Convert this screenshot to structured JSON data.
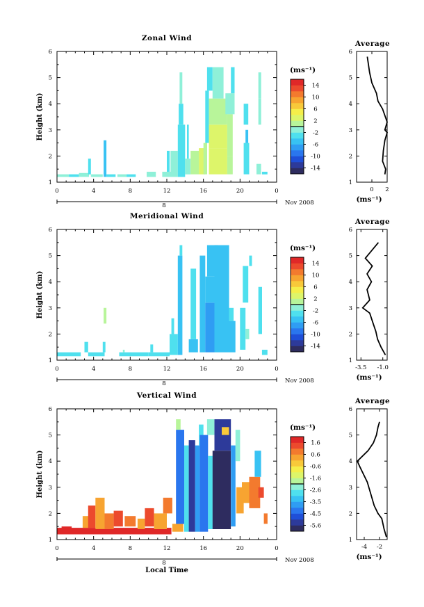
{
  "figure": {
    "date_label": "Nov 2008",
    "day_label": "8",
    "xlabel": "Local Time",
    "ylabel": "Height (km)",
    "average_title": "Average",
    "unit_label": "(ms⁻¹)"
  },
  "chart_data": [
    {
      "type": "heatmap",
      "title": "Zonal Wind",
      "xlabel": "Local Time",
      "ylabel": "Height (km)",
      "xlim": [
        0,
        24
      ],
      "xticks": [
        "0",
        "4",
        "8",
        "12",
        "16",
        "20",
        "0"
      ],
      "ylim": [
        1,
        6
      ],
      "yticks": [
        "1",
        "2",
        "3",
        "4",
        "5",
        "6"
      ],
      "colorbar": {
        "label": "(ms⁻¹)",
        "ticks": [
          "14",
          "10",
          "6",
          "2",
          "-2",
          "-6",
          "-10",
          "-14"
        ],
        "range": [
          -16,
          16
        ]
      },
      "cells": [
        [
          0,
          1.2,
          1.3,
          1.3,
          -2
        ],
        [
          1.3,
          1.2,
          2.4,
          1.3,
          -3
        ],
        [
          2.4,
          1.2,
          3.5,
          1.35,
          -2
        ],
        [
          3.4,
          1.3,
          3.7,
          1.9,
          -3
        ],
        [
          3.7,
          1.2,
          5.0,
          1.3,
          -2
        ],
        [
          5.1,
          1.2,
          5.4,
          2.6,
          -6
        ],
        [
          5.4,
          1.2,
          6.4,
          1.3,
          -3
        ],
        [
          6.6,
          1.2,
          7.6,
          1.3,
          -2
        ],
        [
          7.6,
          1.2,
          8.6,
          1.3,
          -3
        ],
        [
          9.8,
          1.2,
          10.8,
          1.4,
          -2
        ],
        [
          11.5,
          1.2,
          12.5,
          1.4,
          -1
        ],
        [
          12.0,
          1.4,
          12.3,
          2.2,
          -3
        ],
        [
          12.4,
          1.2,
          13.2,
          2.2,
          -2
        ],
        [
          13.2,
          1.2,
          14.0,
          3.2,
          -3
        ],
        [
          13.3,
          3.2,
          13.8,
          4.0,
          -4
        ],
        [
          13.4,
          4.0,
          13.7,
          5.2,
          -2
        ],
        [
          14.0,
          1.3,
          14.6,
          1.9,
          -1
        ],
        [
          14.2,
          1.9,
          14.4,
          3.2,
          -3
        ],
        [
          14.6,
          1.3,
          15.5,
          2.2,
          0
        ],
        [
          15.5,
          1.3,
          16.2,
          2.3,
          3
        ],
        [
          16.0,
          1.3,
          16.4,
          2.5,
          1
        ],
        [
          16.2,
          2.5,
          16.6,
          4.5,
          -3
        ],
        [
          16.4,
          4.5,
          17.0,
          5.4,
          -4
        ],
        [
          16.6,
          1.3,
          18.6,
          2.3,
          2
        ],
        [
          16.6,
          2.3,
          18.6,
          3.2,
          3
        ],
        [
          16.6,
          3.2,
          18.6,
          4.2,
          1
        ],
        [
          17.0,
          4.2,
          18.2,
          5.4,
          -2
        ],
        [
          18.6,
          1.3,
          19.2,
          2.0,
          0
        ],
        [
          18.6,
          2.0,
          19.2,
          3.6,
          0
        ],
        [
          18.4,
          3.6,
          19.4,
          4.4,
          -1
        ],
        [
          19.0,
          4.4,
          19.4,
          5.4,
          -3
        ],
        [
          20.4,
          1.3,
          21.0,
          2.5,
          -4
        ],
        [
          20.6,
          2.5,
          20.9,
          3.0,
          -5
        ],
        [
          20.4,
          3.2,
          20.9,
          4.0,
          -3
        ],
        [
          21.8,
          1.3,
          22.3,
          1.7,
          -2
        ],
        [
          22.0,
          3.2,
          22.3,
          4.2,
          -1
        ],
        [
          22.0,
          4.2,
          22.3,
          5.2,
          -2
        ],
        [
          22.4,
          1.3,
          23.0,
          1.4,
          -3
        ]
      ],
      "average_profile": {
        "xlim": [
          -2,
          2
        ],
        "xticks": [
          "0",
          "2"
        ],
        "ylim": [
          1,
          6
        ],
        "points": [
          [
            1.7,
            1.3
          ],
          [
            1.8,
            1.5
          ],
          [
            1.4,
            1.8
          ],
          [
            1.5,
            2.2
          ],
          [
            1.7,
            2.6
          ],
          [
            2.0,
            2.9
          ],
          [
            1.7,
            3.0
          ],
          [
            2.0,
            3.3
          ],
          [
            1.4,
            3.8
          ],
          [
            0.8,
            4.1
          ],
          [
            0.6,
            4.4
          ],
          [
            0.0,
            4.8
          ],
          [
            -0.3,
            5.2
          ],
          [
            -0.5,
            5.6
          ],
          [
            -0.6,
            5.8
          ]
        ]
      }
    },
    {
      "type": "heatmap",
      "title": "Meridional Wind",
      "xlabel": "Local Time",
      "ylabel": "Height (km)",
      "xlim": [
        0,
        24
      ],
      "xticks": [
        "0",
        "4",
        "8",
        "12",
        "16",
        "20",
        "0"
      ],
      "ylim": [
        1,
        6
      ],
      "yticks": [
        "1",
        "2",
        "3",
        "4",
        "5",
        "6"
      ],
      "colorbar": {
        "label": "(ms⁻¹)",
        "ticks": [
          "14",
          "10",
          "6",
          "2",
          "-2",
          "-6",
          "-10",
          "-14"
        ],
        "range": [
          -16,
          16
        ]
      },
      "cells": [
        [
          0,
          1.15,
          2.6,
          1.3,
          -4
        ],
        [
          3.4,
          1.15,
          5.2,
          1.3,
          -4
        ],
        [
          3.0,
          1.3,
          3.4,
          1.7,
          -3
        ],
        [
          5.0,
          1.3,
          5.3,
          1.7,
          -3
        ],
        [
          5.1,
          2.4,
          5.4,
          3.0,
          0
        ],
        [
          6.8,
          1.15,
          10.0,
          1.3,
          -3
        ],
        [
          7.2,
          1.3,
          7.4,
          1.4,
          -2
        ],
        [
          10.0,
          1.15,
          12.3,
          1.3,
          -4
        ],
        [
          10.2,
          1.3,
          10.5,
          1.6,
          -3
        ],
        [
          12.3,
          1.2,
          13.2,
          2.0,
          -3
        ],
        [
          12.5,
          2.0,
          12.8,
          2.6,
          -4
        ],
        [
          13.2,
          1.2,
          13.7,
          5.0,
          -5
        ],
        [
          13.4,
          5.0,
          13.7,
          5.4,
          -4
        ],
        [
          14.4,
          1.3,
          15.4,
          1.8,
          -5
        ],
        [
          14.6,
          1.8,
          15.2,
          4.5,
          -4
        ],
        [
          15.6,
          1.3,
          16.2,
          5.0,
          -5
        ],
        [
          16.2,
          1.3,
          17.2,
          3.2,
          -7
        ],
        [
          16.2,
          3.2,
          17.2,
          4.2,
          -6
        ],
        [
          16.4,
          4.2,
          17.6,
          5.4,
          -5
        ],
        [
          17.2,
          1.3,
          18.8,
          3.5,
          -6
        ],
        [
          17.2,
          3.5,
          18.8,
          5.4,
          -5
        ],
        [
          18.8,
          1.3,
          19.5,
          2.5,
          -5
        ],
        [
          18.8,
          2.5,
          19.3,
          3.0,
          -4
        ],
        [
          20.0,
          1.4,
          20.6,
          3.0,
          -4
        ],
        [
          20.6,
          1.8,
          21.0,
          2.2,
          -2
        ],
        [
          20.3,
          3.2,
          20.9,
          4.6,
          -4
        ],
        [
          21.0,
          4.6,
          21.3,
          5.0,
          -3
        ],
        [
          22.0,
          2.0,
          22.4,
          3.8,
          -4
        ],
        [
          22.4,
          1.2,
          23.0,
          1.4,
          -3
        ]
      ],
      "average_profile": {
        "xlim": [
          -4,
          -0.5
        ],
        "xticks": [
          "-3.5",
          "-1.0"
        ],
        "ylim": [
          1,
          6
        ],
        "points": [
          [
            -0.7,
            1.2
          ],
          [
            -1.2,
            1.5
          ],
          [
            -1.6,
            1.8
          ],
          [
            -1.8,
            2.1
          ],
          [
            -2.1,
            2.4
          ],
          [
            -2.5,
            2.8
          ],
          [
            -3.3,
            3.0
          ],
          [
            -2.5,
            3.3
          ],
          [
            -2.8,
            3.7
          ],
          [
            -2.3,
            4.0
          ],
          [
            -2.8,
            4.3
          ],
          [
            -2.2,
            4.6
          ],
          [
            -3.0,
            4.9
          ],
          [
            -2.5,
            5.1
          ],
          [
            -2.0,
            5.3
          ],
          [
            -1.5,
            5.5
          ]
        ]
      }
    },
    {
      "type": "heatmap",
      "title": "Vertical Wind",
      "xlabel": "Local Time",
      "ylabel": "Height (km)",
      "xlim": [
        0,
        24
      ],
      "xticks": [
        "0",
        "4",
        "8",
        "12",
        "16",
        "20",
        "0"
      ],
      "ylim": [
        1,
        6
      ],
      "yticks": [
        "1",
        "2",
        "3",
        "4",
        "5",
        "6"
      ],
      "colorbar": {
        "label": "(ms⁻¹)",
        "ticks": [
          "1.6",
          "0.6",
          "-0.6",
          "-1.6",
          "-2.6",
          "-3.5",
          "-4.5",
          "-5.6"
        ],
        "range": [
          -6,
          2
        ]
      },
      "cells": [
        [
          0,
          1.2,
          12.5,
          1.45,
          1.8
        ],
        [
          0.5,
          1.2,
          1.6,
          1.5,
          1.6
        ],
        [
          1.6,
          1.2,
          3.0,
          1.4,
          1.8
        ],
        [
          2.8,
          1.45,
          3.6,
          1.9,
          0.4
        ],
        [
          3.4,
          1.45,
          4.2,
          2.3,
          1.0
        ],
        [
          4.2,
          1.4,
          5.2,
          2.6,
          0.0
        ],
        [
          5.2,
          1.4,
          6.2,
          2.0,
          0.6
        ],
        [
          6.2,
          1.5,
          7.2,
          2.1,
          1.0
        ],
        [
          7.4,
          1.5,
          8.6,
          1.9,
          0.8
        ],
        [
          8.8,
          1.4,
          9.6,
          1.8,
          0.4
        ],
        [
          9.6,
          1.5,
          10.6,
          2.2,
          1.2
        ],
        [
          10.6,
          1.4,
          12.0,
          2.0,
          0.2
        ],
        [
          11.6,
          2.0,
          12.6,
          2.6,
          0.8
        ],
        [
          12.6,
          1.3,
          13.8,
          1.6,
          0.0
        ],
        [
          13.0,
          1.6,
          13.9,
          5.2,
          -4.5
        ],
        [
          13.0,
          5.2,
          13.5,
          5.6,
          -1.8
        ],
        [
          13.9,
          1.3,
          14.4,
          4.6,
          -3.0
        ],
        [
          14.4,
          1.3,
          15.1,
          4.8,
          -5.2
        ],
        [
          15.1,
          1.3,
          15.6,
          4.6,
          -3.6
        ],
        [
          15.5,
          4.6,
          16.0,
          5.4,
          -2.8
        ],
        [
          15.6,
          1.3,
          16.5,
          5.0,
          -4.5
        ],
        [
          16.4,
          5.0,
          17.2,
          5.6,
          -2.2
        ],
        [
          16.5,
          1.4,
          17.0,
          4.2,
          -3.0
        ],
        [
          17.0,
          1.4,
          19.0,
          4.4,
          -5.8
        ],
        [
          17.2,
          4.4,
          19.0,
          5.6,
          -5.4
        ],
        [
          18.0,
          5.0,
          18.8,
          5.3,
          -0.5
        ],
        [
          19.0,
          1.5,
          19.5,
          4.6,
          -4.0
        ],
        [
          19.5,
          4.0,
          20.0,
          5.2,
          -2.4
        ],
        [
          19.6,
          2.0,
          20.4,
          3.0,
          0.4
        ],
        [
          20.2,
          2.4,
          21.2,
          3.2,
          0.0
        ],
        [
          21.0,
          2.2,
          22.2,
          3.4,
          0.6
        ],
        [
          22.0,
          2.6,
          22.6,
          3.0,
          1.0
        ],
        [
          21.6,
          3.4,
          22.3,
          4.4,
          -3.4
        ],
        [
          22.6,
          1.6,
          23.0,
          2.0,
          0.8
        ]
      ],
      "average_profile": {
        "xlim": [
          -5,
          -1
        ],
        "xticks": [
          "-4",
          "-2"
        ],
        "ylim": [
          1,
          6
        ],
        "points": [
          [
            -1.1,
            1.1
          ],
          [
            -1.4,
            1.4
          ],
          [
            -1.7,
            1.8
          ],
          [
            -2.2,
            2.0
          ],
          [
            -2.7,
            2.3
          ],
          [
            -3.2,
            2.8
          ],
          [
            -3.6,
            3.2
          ],
          [
            -4.1,
            3.5
          ],
          [
            -4.6,
            3.8
          ],
          [
            -4.9,
            4.0
          ],
          [
            -4.2,
            4.2
          ],
          [
            -3.5,
            4.4
          ],
          [
            -2.8,
            4.7
          ],
          [
            -2.4,
            5.0
          ],
          [
            -2.2,
            5.3
          ],
          [
            -2.0,
            5.5
          ]
        ]
      }
    }
  ]
}
